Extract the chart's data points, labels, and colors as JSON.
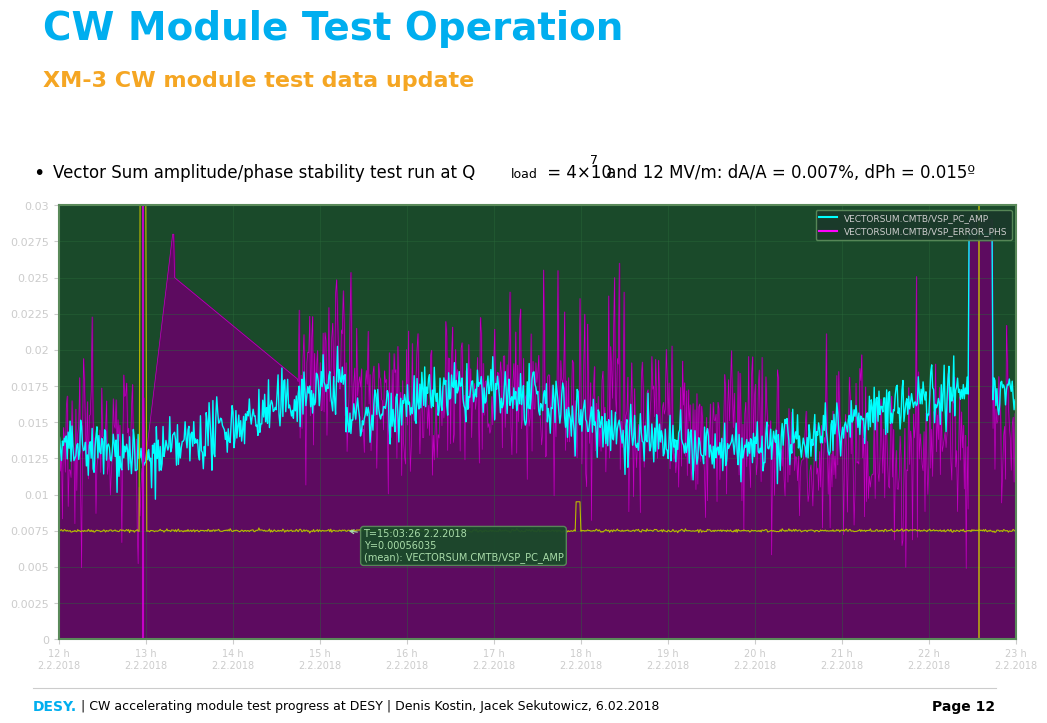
{
  "title": "CW Module Test Operation",
  "subtitle": "XM-3 CW module test data update",
  "title_color": "#00AEEF",
  "subtitle_color": "#F5A623",
  "plot_bg": "#1A4A2A",
  "plot_border": "#5A8A5A",
  "y_min": 0,
  "y_max": 0.03,
  "y_ticks": [
    0,
    0.0025,
    0.005,
    0.0075,
    0.01,
    0.0125,
    0.015,
    0.0175,
    0.02,
    0.0225,
    0.025,
    0.0275,
    0.03
  ],
  "x_labels": [
    "12 h\n2.2.2018",
    "13 h\n2.2.2018",
    "14 h\n2.2.2018",
    "15 h\n2.2.2018",
    "16 h\n2.2.2018",
    "17 h\n2.2.2018",
    "18 h\n2.2.2018",
    "19 h\n2.2.2018",
    "20 h\n2.2.2018",
    "21 h\n2.2.2018",
    "22 h\n2.2.2018",
    "23 h\n2.2.2018"
  ],
  "legend_entries": [
    "VECTORSUM.CMTB/VSP_PC_AMP",
    "VECTORSUM.CMTB/VSP_ERROR_PHS"
  ],
  "legend_colors": [
    "#00FFFF",
    "#FF00FF"
  ],
  "annotation_text": "T=15:03:26 2.2.2018\nY=0.00056035\n(mean): VECTORSUM.CMTB/VSP_PC_AMP",
  "footer_text": "| CW accelerating module test progress at DESY | Denis Kostin, Jacek Sekutowicz, 6.02.2018",
  "footer_desy_color": "#00AEEF",
  "page_text": "Page 12",
  "bg_color": "#FFFFFF",
  "grid_color": "#2A6A3A",
  "axis_text_color": "#CCCCCC"
}
